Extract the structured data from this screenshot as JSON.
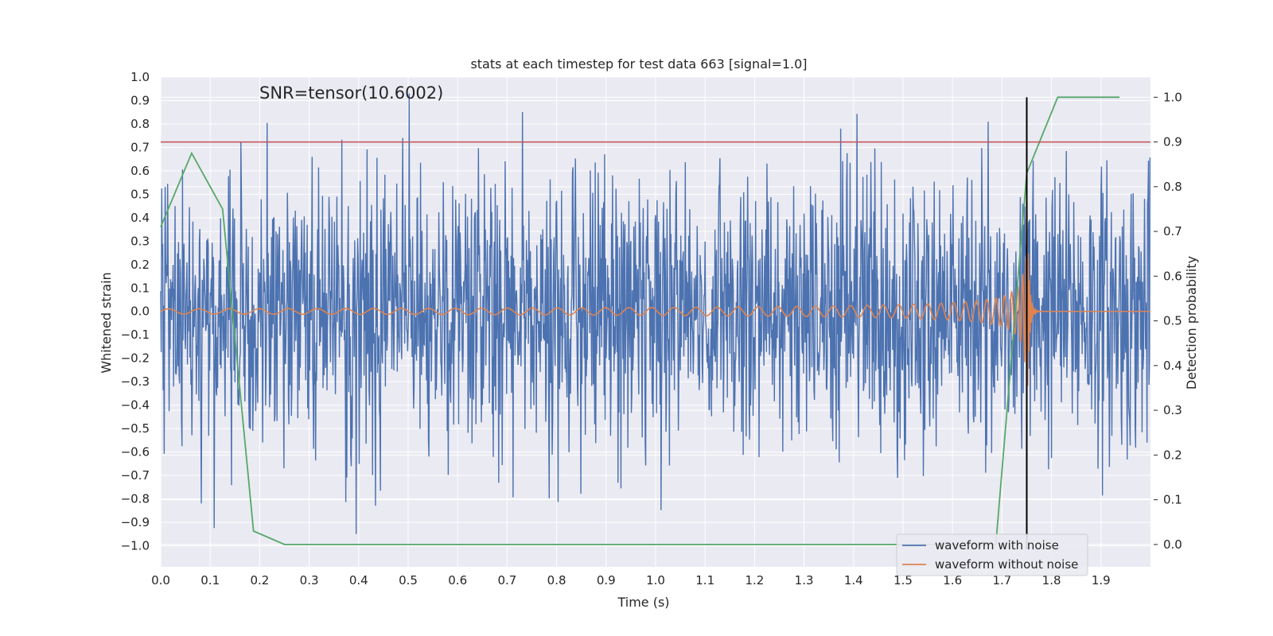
{
  "chart_data": {
    "type": "line",
    "title": "stats at each timestep for test data 663 [signal=1.0]",
    "annotation": "SNR=tensor(10.6002)",
    "xlabel": "Time (s)",
    "ylabel": "Whitened strain",
    "y2label": "Detection probability",
    "xlim": [
      0.0,
      2.0
    ],
    "ylim": [
      -1.09,
      1.0
    ],
    "y2lim": [
      -0.05,
      1.045
    ],
    "x_ticks": [
      "0.0",
      "0.1",
      "0.2",
      "0.3",
      "0.4",
      "0.5",
      "0.6",
      "0.7",
      "0.8",
      "0.9",
      "1.0",
      "1.1",
      "1.2",
      "1.3",
      "1.4",
      "1.5",
      "1.6",
      "1.7",
      "1.8",
      "1.9"
    ],
    "y_ticks": [
      "1.0",
      "0.9",
      "0.8",
      "0.7",
      "0.6",
      "0.5",
      "0.4",
      "0.3",
      "0.2",
      "0.1",
      "0.0",
      "−0.1",
      "−0.2",
      "−0.3",
      "−0.4",
      "−0.5",
      "−0.6",
      "−0.7",
      "−0.8",
      "−0.9",
      "−1.0"
    ],
    "y2_ticks": [
      "1.0",
      "0.9",
      "0.8",
      "0.7",
      "0.6",
      "0.5",
      "0.4",
      "0.3",
      "0.2",
      "0.1",
      "0.0"
    ],
    "threshold": {
      "value": 0.9,
      "axis": "right",
      "color": "#c44e52"
    },
    "merger_time": 1.75,
    "colors": {
      "noise": "#4c72b0",
      "clean": "#dd8452",
      "prob": "#55a868",
      "threshold": "#c44e52",
      "marker": "#000000"
    },
    "series": [
      {
        "name": "waveform with noise",
        "axis": "left",
        "description": "noisy whitened strain, roughly within -0.9 to 0.9",
        "amplitude": 0.3
      },
      {
        "name": "waveform without noise",
        "axis": "left",
        "description": "chirp signal growing in amplitude and frequency, merging at 1.75 s",
        "merger_time": 1.75
      },
      {
        "name": "detection probability",
        "axis": "right",
        "x": [
          0.0,
          0.0625,
          0.125,
          0.1875,
          0.25,
          0.3125,
          1.6875,
          1.75,
          1.8125,
          1.875,
          1.9375
        ],
        "y": [
          0.71,
          0.875,
          0.75,
          0.03,
          0.0,
          0.0,
          0.0,
          0.83,
          1.0,
          1.0,
          1.0
        ]
      }
    ],
    "legend": {
      "position": "lower-right",
      "entries": [
        "waveform with noise",
        "waveform without noise"
      ]
    }
  }
}
